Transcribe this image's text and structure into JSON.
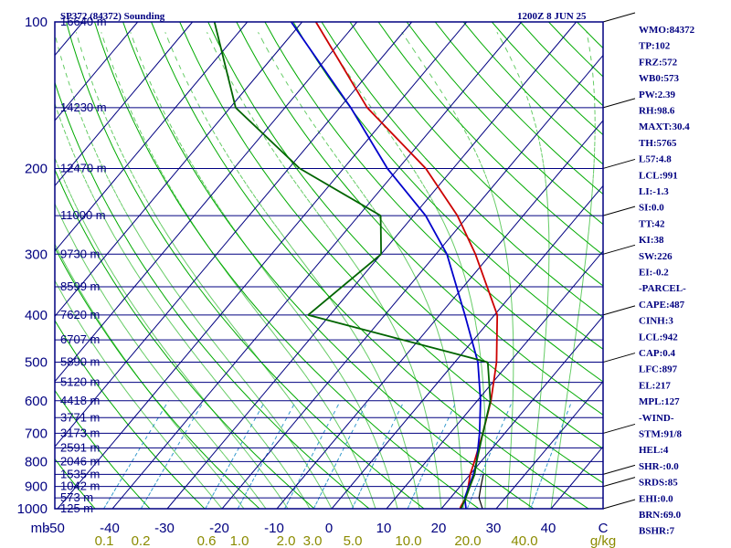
{
  "header": {
    "station": "SP372 (84372) Sounding",
    "datetime": "1200Z  8 JUN 25"
  },
  "indices": [
    "WMO:84372",
    "TP:102",
    "FRZ:572",
    "WB0:573",
    "PW:2.39",
    "RH:98.6",
    "MAXT:30.4",
    "TH:5765",
    "L57:4.8",
    "LCL:991",
    "LI:-1.3",
    "SI:0.0",
    "TT:42",
    "KI:38",
    "SW:226",
    "EI:-0.2",
    "-PARCEL-",
    "CAPE:487",
    "CINH:3",
    "LCL:942",
    "CAP:0.4",
    "LFC:897",
    "EL:217",
    "MPL:127",
    "-WIND-",
    "STM:91/8",
    "HEL:4",
    "SHR-:0.0",
    "SRDS:85",
    "EHI:0.0",
    "BRN:69.0",
    "BSHR:7"
  ],
  "colors": {
    "frame": "#000080",
    "isobar": "#000080",
    "isotherm": "#000080",
    "dry_adiabat": "#00aa00",
    "moist_adiabat": "#66cc66",
    "mixing_ratio": "#3399cc",
    "virtual_temp": "#000000",
    "temperature": "#0000cc",
    "dewpoint": "#cc0000",
    "wet_bulb": "#006400",
    "label_text": "#000080",
    "mixing_label": "#8b8b00"
  },
  "chart_data": {
    "type": "line",
    "title": "SP372 (84372) Sounding",
    "y_scale": "log-pressure",
    "ylim": [
      1000,
      100
    ],
    "xlim": [
      -50,
      50
    ],
    "xlabel": "mb",
    "x_ticks": [
      "-50",
      "-40",
      "-30",
      "-20",
      "-10",
      "0",
      "10",
      "20",
      "30",
      "40",
      "C"
    ],
    "pressure_ticks": [
      {
        "p": 100,
        "label": "100"
      },
      {
        "p": 200,
        "label": "200"
      },
      {
        "p": 300,
        "label": "300"
      },
      {
        "p": 400,
        "label": "400"
      },
      {
        "p": 500,
        "label": "500"
      },
      {
        "p": 600,
        "label": "600"
      },
      {
        "p": 700,
        "label": "700"
      },
      {
        "p": 800,
        "label": "800"
      },
      {
        "p": 900,
        "label": "900"
      },
      {
        "p": 1000,
        "label": "1000"
      }
    ],
    "height_labels": [
      {
        "p": 100,
        "label": "16640 m"
      },
      {
        "p": 150,
        "label": "14230 m"
      },
      {
        "p": 200,
        "label": "12470 m"
      },
      {
        "p": 250,
        "label": "11000 m"
      },
      {
        "p": 300,
        "label": "9730 m"
      },
      {
        "p": 350,
        "label": "8599 m"
      },
      {
        "p": 400,
        "label": "7620 m"
      },
      {
        "p": 450,
        "label": "6707 m"
      },
      {
        "p": 500,
        "label": "5890 m"
      },
      {
        "p": 550,
        "label": "5120 m"
      },
      {
        "p": 600,
        "label": "4418 m"
      },
      {
        "p": 650,
        "label": "3771 m"
      },
      {
        "p": 700,
        "label": "3173 m"
      },
      {
        "p": 750,
        "label": "2591 m"
      },
      {
        "p": 800,
        "label": "2046 m"
      },
      {
        "p": 850,
        "label": "1535 m"
      },
      {
        "p": 900,
        "label": "1042 m"
      },
      {
        "p": 950,
        "label": "573 m"
      },
      {
        "p": 1000,
        "label": "125 m"
      }
    ],
    "mixing_ratio_ticks": [
      "0.1",
      "0.2",
      "0.6",
      "1.0",
      "2.0",
      "3.0",
      "5.0",
      "10.0",
      "20.0",
      "40.0",
      "g/kg"
    ],
    "mixing_ratio_values": [
      0.1,
      0.2,
      0.6,
      1.0,
      2.0,
      3.0,
      5.0,
      10.0,
      20.0,
      40.0
    ],
    "series": [
      {
        "name": "",
        "role": "dewpoint",
        "points": [
          [
            1000,
            23.4
          ],
          [
            990,
            23.2
          ],
          [
            950,
            22.8
          ],
          [
            900,
            21.5
          ],
          [
            850,
            20.0
          ],
          [
            800,
            18.8
          ],
          [
            700,
            16.0
          ],
          [
            600,
            12.5
          ],
          [
            500,
            7.6
          ],
          [
            400,
            0.5
          ],
          [
            300,
            -12.8
          ],
          [
            250,
            -22.0
          ],
          [
            200,
            -35.0
          ],
          [
            150,
            -55.0
          ],
          [
            100,
            -77.5
          ]
        ]
      },
      {
        "name": "",
        "role": "temperature",
        "points": [
          [
            1000,
            24.5
          ],
          [
            950,
            22.6
          ],
          [
            900,
            21.6
          ],
          [
            850,
            20.6
          ],
          [
            800,
            19.2
          ],
          [
            700,
            15.4
          ],
          [
            600,
            10.6
          ],
          [
            500,
            4.2
          ],
          [
            400,
            -5.4
          ],
          [
            300,
            -18.0
          ],
          [
            250,
            -27.8
          ],
          [
            200,
            -42.0
          ],
          [
            150,
            -58.0
          ],
          [
            100,
            -82.0
          ]
        ]
      },
      {
        "name": "",
        "role": "virtual-temperature",
        "points": [
          [
            1000,
            27.5
          ],
          [
            950,
            25.2
          ],
          [
            900,
            23.8
          ],
          [
            850,
            22.4
          ]
        ]
      },
      {
        "name": "",
        "role": "wet-bulb",
        "points": [
          [
            1000,
            23.6
          ],
          [
            950,
            22.8
          ],
          [
            900,
            21.8
          ],
          [
            850,
            20.8
          ],
          [
            800,
            19.2
          ],
          [
            700,
            16.0
          ],
          [
            600,
            12.4
          ],
          [
            500,
            6.0
          ],
          [
            400,
            -34.0
          ],
          [
            300,
            -30.0
          ],
          [
            250,
            -36.0
          ],
          [
            200,
            -58.0
          ],
          [
            150,
            -79.0
          ],
          [
            100,
            -96.0
          ]
        ]
      }
    ],
    "wind_barbs": [
      {
        "p": 1000,
        "speed_kt": 0
      },
      {
        "p": 900,
        "speed_kt": 5
      },
      {
        "p": 850,
        "speed_kt": 20
      },
      {
        "p": 700,
        "speed_kt": 10
      },
      {
        "p": 500,
        "speed_kt": 5
      },
      {
        "p": 400,
        "speed_kt": 5
      },
      {
        "p": 300,
        "speed_kt": 15
      },
      {
        "p": 250,
        "speed_kt": 10
      },
      {
        "p": 200,
        "speed_kt": 10
      },
      {
        "p": 150,
        "speed_kt": 20
      },
      {
        "p": 100,
        "speed_kt": 15
      }
    ],
    "grid": true,
    "legend": "none"
  }
}
